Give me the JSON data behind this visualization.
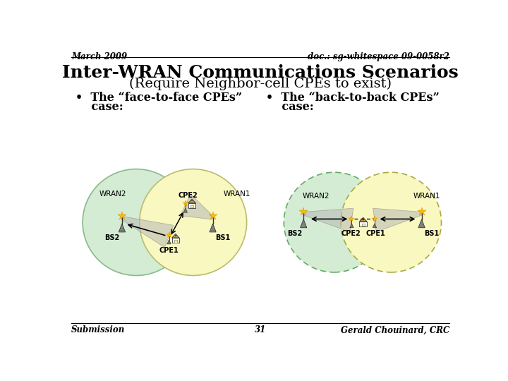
{
  "bg_color": "#ffffff",
  "header_left": "March 2009",
  "header_right": "doc.: sg-whitespace 09-0058r2",
  "title_line1": "Inter-WRAN Communications Scenarios",
  "title_line2": "(Require Neighbor-cell CPEs to exist)",
  "bullet1_line1": "•  The “face-to-face CPEs”",
  "bullet1_line2": "    case:",
  "bullet2_line1": "•  The “back-to-back CPEs”",
  "bullet2_line2": "    case:",
  "footer_left": "Submission",
  "footer_center": "31",
  "footer_right": "Gerald Chouinard, CRC",
  "header_font_size": 8.5,
  "title_font_size": 18,
  "subtitle_font_size": 14,
  "bullet_font_size": 11.5,
  "footer_font_size": 8.5
}
